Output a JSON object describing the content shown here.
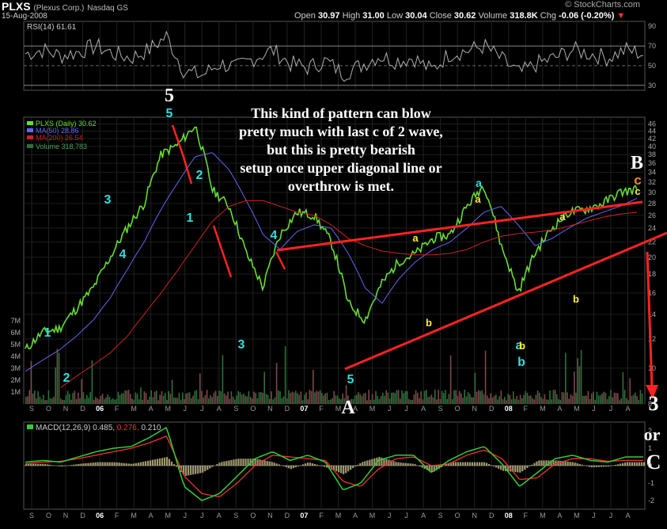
{
  "header": {
    "symbol": "PLXS",
    "company": "(Plexus Corp.)",
    "exchange": "Nasdaq GS",
    "date": "15-Aug-2008",
    "open_label": "Open",
    "open": "30.97",
    "high_label": "High",
    "high": "31.00",
    "low_label": "Low",
    "low": "30.04",
    "close_label": "Close",
    "close": "30.62",
    "volume_label": "Volume",
    "volume": "318.8K",
    "chg_label": "Chg",
    "chg": "-0.06 (-0.20%)",
    "logo": "© StockCharts.com"
  },
  "annotation_text": [
    "This kind of pattern can blow",
    "pretty much with last c of 2 wave,",
    "but this is pretty bearish",
    "setup once upper diagonal line or",
    "overthrow is met."
  ],
  "colors": {
    "price": "#66dd33",
    "ma50": "#6666ee",
    "ma200": "#cc2222",
    "volume": "#2f6e3a",
    "rsi": "#b0b0b0",
    "macd": "#33cc33",
    "signal": "#ee3333",
    "hist": "#c8bf8a",
    "wave_cyan": "#33dddd",
    "wave_yellow": "#ffee33",
    "wave_orange": "#ff8800",
    "trend": "#ff2222"
  },
  "chart_data": [
    {
      "type": "line",
      "panel": "RSI",
      "legend": "RSI(14) 61.61",
      "ylim": [
        25,
        95
      ],
      "yticks": [
        30,
        50,
        70,
        90
      ],
      "levels": [
        30,
        50,
        70
      ],
      "x": [
        "2005-09",
        "2005-10",
        "2005-11",
        "2005-12",
        "2006-01",
        "2006-02",
        "2006-03",
        "2006-04",
        "2006-05",
        "2006-06",
        "2006-07",
        "2006-08",
        "2006-09",
        "2006-10",
        "2006-11",
        "2006-12",
        "2007-01",
        "2007-02",
        "2007-03",
        "2007-04",
        "2007-05",
        "2007-06",
        "2007-07",
        "2007-08",
        "2007-09",
        "2007-10",
        "2007-11",
        "2007-12",
        "2008-01",
        "2008-02",
        "2008-03",
        "2008-04",
        "2008-05",
        "2008-06",
        "2008-07",
        "2008-08"
      ],
      "values": [
        62,
        66,
        60,
        64,
        70,
        62,
        58,
        66,
        80,
        44,
        40,
        52,
        48,
        58,
        66,
        52,
        48,
        55,
        42,
        50,
        60,
        55,
        58,
        45,
        62,
        65,
        70,
        56,
        42,
        52,
        58,
        66,
        62,
        58,
        66,
        62
      ]
    },
    {
      "type": "line",
      "panel": "Price",
      "series": [
        {
          "name": "PLXS (Daily) 30.62",
          "legend_name": "PLXS (Daily)",
          "legend_value": "30.62",
          "values": [
            11.2,
            12.5,
            12.8,
            14.5,
            16.5,
            20.0,
            24.0,
            28.0,
            38.0,
            40.5,
            45.5,
            30.5,
            27.5,
            20.5,
            16.5,
            23.0,
            26.5,
            26.0,
            22.0,
            15.0,
            13.5,
            17.0,
            19.5,
            20.5,
            22.5,
            23.0,
            27.5,
            31.5,
            21.5,
            16.0,
            20.5,
            24.0,
            26.5,
            27.0,
            28.0,
            30.0,
            30.6
          ]
        },
        {
          "name": "MA(50) 28.86",
          "legend_name": "MA(50)",
          "legend_value": "28.86",
          "values": [
            9.8,
            10.5,
            11.2,
            12.2,
            13.5,
            15.5,
            18.5,
            22.0,
            27.0,
            32.0,
            37.5,
            38.5,
            34.5,
            28.5,
            23.0,
            21.0,
            23.5,
            24.5,
            24.0,
            20.5,
            16.5,
            15.0,
            17.5,
            19.5,
            21.0,
            22.0,
            24.0,
            26.5,
            27.5,
            24.5,
            21.5,
            22.5,
            24.0,
            25.5,
            26.5,
            27.5,
            28.9
          ]
        },
        {
          "name": "MA(200) 26.54",
          "legend_name": "MA(200)",
          "legend_value": "26.54",
          "values": [
            null,
            null,
            8.8,
            9.5,
            10.2,
            11.0,
            12.2,
            14.0,
            16.0,
            18.5,
            21.5,
            25.0,
            27.5,
            28.5,
            28.5,
            27.5,
            26.5,
            26.0,
            24.5,
            22.5,
            21.5,
            20.8,
            20.5,
            20.3,
            20.3,
            20.5,
            21.0,
            22.0,
            22.8,
            23.2,
            23.4,
            23.7,
            24.3,
            25.0,
            25.7,
            26.2,
            26.5
          ]
        }
      ],
      "x": [
        "2005-09",
        "2005-10",
        "2005-11",
        "2005-12",
        "2006-01",
        "2006-02",
        "2006-03",
        "2006-04",
        "2006-05",
        "2006-05b",
        "2006-06",
        "2006-07",
        "2006-08",
        "2006-09",
        "2006-10",
        "2006-11",
        "2006-12",
        "2007-01",
        "2007-02",
        "2007-03",
        "2007-03b",
        "2007-04",
        "2007-05",
        "2007-06",
        "2007-07",
        "2007-08",
        "2007-09",
        "2007-11",
        "2007-12",
        "2008-01",
        "2008-02",
        "2008-03",
        "2008-04",
        "2008-05",
        "2008-06",
        "2008-07",
        "2008-08"
      ],
      "yticks": [
        8,
        10,
        12,
        14,
        16,
        18,
        20,
        22,
        24,
        26,
        28,
        30,
        32,
        34,
        36,
        38,
        40,
        42,
        44,
        46
      ],
      "y_scale": "log",
      "ylim": [
        8,
        48
      ]
    },
    {
      "type": "bar",
      "panel": "Volume",
      "legend": "Volume 318,783",
      "yticks": [
        "1M",
        "2M",
        "3M",
        "4M",
        "5M",
        "6M",
        "7M"
      ],
      "ylim": [
        0,
        8
      ]
    },
    {
      "type": "line",
      "panel": "MACD",
      "legend_label": "MACD(12,26,9)",
      "legend_values": [
        "0.485",
        "0.276",
        "0.210"
      ],
      "ylim": [
        -2.5,
        2.5
      ],
      "yticks": [
        -2,
        -1,
        0,
        1,
        2
      ],
      "x": [
        "2005-09",
        "2005-10",
        "2005-11",
        "2005-12",
        "2006-01",
        "2006-02",
        "2006-03",
        "2006-04",
        "2006-05",
        "2006-06",
        "2006-07",
        "2006-08",
        "2006-09",
        "2006-10",
        "2006-11",
        "2006-12",
        "2007-01",
        "2007-02",
        "2007-03",
        "2007-04",
        "2007-05",
        "2007-06",
        "2007-07",
        "2007-08",
        "2007-09",
        "2007-10",
        "2007-11",
        "2007-12",
        "2008-01",
        "2008-02",
        "2008-03",
        "2008-04",
        "2008-05",
        "2008-06",
        "2008-07",
        "2008-08"
      ],
      "series": [
        {
          "name": "MACD",
          "values": [
            0.2,
            0.3,
            0.2,
            0.5,
            0.8,
            1.0,
            1.1,
            1.6,
            2.2,
            -1.2,
            -2.0,
            -1.6,
            -0.6,
            0.4,
            0.8,
            0.3,
            0.6,
            0.2,
            -1.4,
            -1.0,
            0.3,
            0.6,
            0.6,
            -0.4,
            0.3,
            0.8,
            1.1,
            0.1,
            -1.2,
            -0.4,
            0.4,
            0.6,
            0.3,
            0.2,
            0.5,
            0.5
          ]
        },
        {
          "name": "Signal",
          "values": [
            0.1,
            0.2,
            0.25,
            0.4,
            0.6,
            0.8,
            1.0,
            1.3,
            1.7,
            -0.6,
            -1.6,
            -1.8,
            -1.0,
            0.0,
            0.6,
            0.5,
            0.4,
            0.3,
            -0.9,
            -1.2,
            -0.2,
            0.4,
            0.5,
            0.0,
            0.1,
            0.6,
            0.9,
            0.4,
            -0.8,
            -0.7,
            0.1,
            0.4,
            0.4,
            0.25,
            0.3,
            0.3
          ]
        }
      ]
    }
  ],
  "x_axis_labels": [
    "S",
    "O",
    "N",
    "D",
    "06",
    "F",
    "M",
    "A",
    "M",
    "J",
    "J",
    "A",
    "S",
    "O",
    "N",
    "D",
    "07",
    "F",
    "M",
    "A",
    "M",
    "J",
    "J",
    "A",
    "S",
    "O",
    "N",
    "D",
    "08",
    "F",
    "M",
    "A",
    "M",
    "J",
    "J",
    "A"
  ],
  "wave_labels": {
    "cyan": [
      "1",
      "2",
      "3",
      "4",
      "5",
      "1",
      "2",
      "3",
      "4",
      "5",
      "a",
      "b"
    ],
    "big": [
      "5",
      "A",
      "B",
      "3",
      "or",
      "C"
    ],
    "yellow": [
      "a",
      "b",
      "a",
      "b",
      "a",
      "b",
      "c",
      "c"
    ],
    "orange": [
      "c"
    ]
  }
}
